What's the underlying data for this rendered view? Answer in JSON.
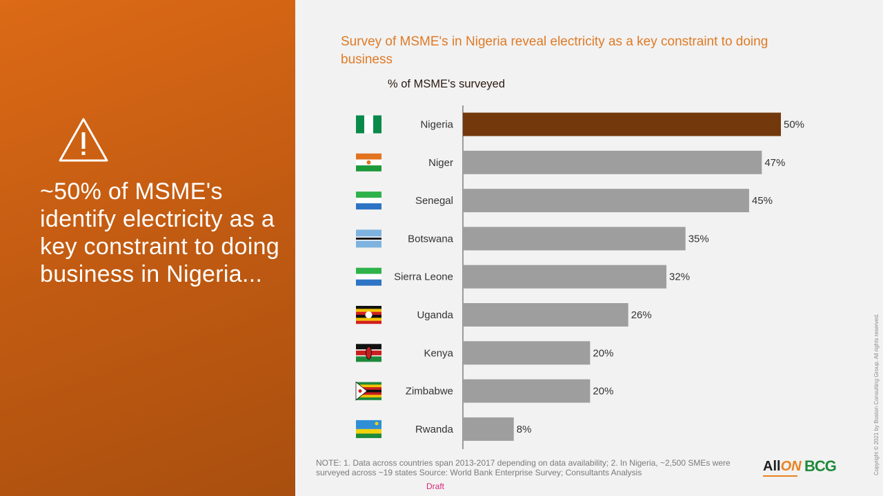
{
  "headline": "~50% of MSME's identify electricity as a key constraint to doing business in Nigeria...",
  "chart_title": "Survey of MSME's in Nigeria reveal electricity as a key constraint to doing business",
  "note": "NOTE: 1. Data across countries span 2013-2017 depending on data availability; 2. In Nigeria, ~2,500 SMEs were surveyed across ~19 states Source: World Bank Enterprise Survey; Consultants Analysis",
  "draft_label": "Draft",
  "logos": {
    "allon_part1": "All",
    "allon_part2": "ON",
    "bcg": "BCG"
  },
  "copyright": "Copyright © 2021 by Boston Consulting Group. All rights reserved.",
  "colors": {
    "highlight": "#73390c",
    "bar": "#9e9e9e",
    "accent": "#de7a25",
    "panel": "#c45c12"
  },
  "icons": [
    "warning-icon",
    "flag-icon"
  ],
  "chart_data": {
    "type": "bar",
    "orientation": "horizontal",
    "subtitle": "% of MSME's surveyed",
    "categories": [
      "Nigeria",
      "Niger",
      "Senegal",
      "Botswana",
      "Sierra Leone",
      "Uganda",
      "Kenya",
      "Zimbabwe",
      "Rwanda"
    ],
    "values": [
      50,
      47,
      45,
      35,
      32,
      26,
      20,
      20,
      8
    ],
    "value_labels": [
      "50%",
      "47%",
      "45%",
      "35%",
      "32%",
      "26%",
      "20%",
      "20%",
      "8%"
    ],
    "highlighted_category": "Nigeria",
    "xlim": [
      0,
      50
    ],
    "grid": false,
    "legend": "none"
  }
}
